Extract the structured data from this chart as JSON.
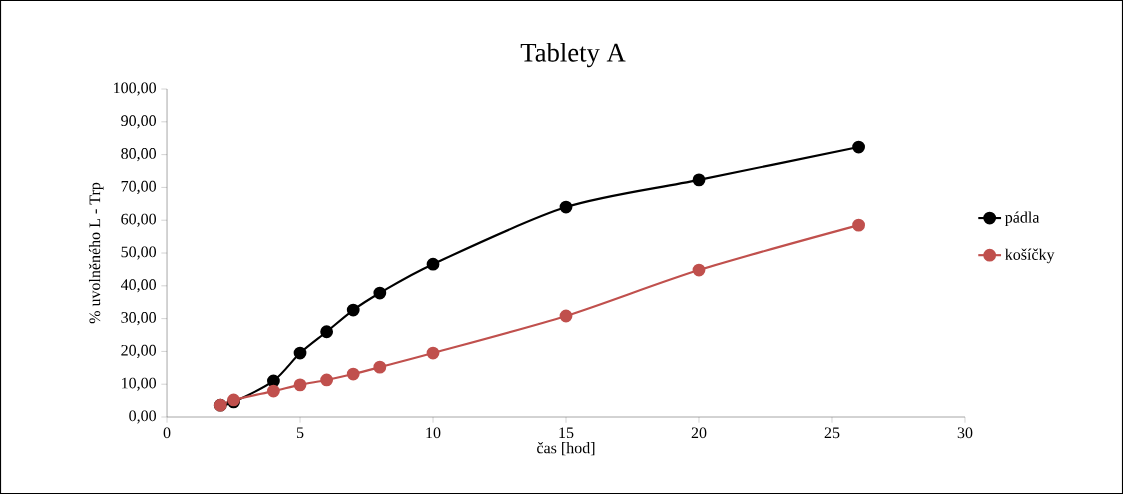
{
  "chart_data": {
    "type": "line",
    "title": "Tablety A",
    "xlabel": "čas [hod]",
    "ylabel": "% uvolněného L - Trp",
    "x": [
      2,
      2.5,
      4,
      5,
      6,
      7,
      8,
      10,
      15,
      20,
      26
    ],
    "series": [
      {
        "name": "pádla",
        "color": "#000000",
        "values": [
          3.6,
          4.6,
          11,
          19.5,
          26,
          32.6,
          37.8,
          46.6,
          64,
          72.3,
          82.3
        ]
      },
      {
        "name": "košíčky",
        "color": "#c0504d",
        "values": [
          3.6,
          5.2,
          7.9,
          9.8,
          11.3,
          13.1,
          15.2,
          19.5,
          30.8,
          44.8,
          58.5
        ]
      }
    ],
    "xlim": [
      0,
      30
    ],
    "xticks": [
      0,
      5,
      10,
      15,
      20,
      25,
      30
    ],
    "ylim": [
      0,
      100
    ],
    "yticks": [
      {
        "value": 0,
        "label": "0,00"
      },
      {
        "value": 10,
        "label": "10,00"
      },
      {
        "value": 20,
        "label": "20,00"
      },
      {
        "value": 30,
        "label": "30,00"
      },
      {
        "value": 40,
        "label": "40,00"
      },
      {
        "value": 50,
        "label": "50,00"
      },
      {
        "value": 60,
        "label": "60,00"
      },
      {
        "value": 70,
        "label": "70,00"
      },
      {
        "value": 80,
        "label": "80,00"
      },
      {
        "value": 90,
        "label": "90,00"
      },
      {
        "value": 100,
        "label": "100,00"
      }
    ],
    "marker": "circle",
    "line_style": "solid",
    "legend": "right",
    "grid": false
  }
}
